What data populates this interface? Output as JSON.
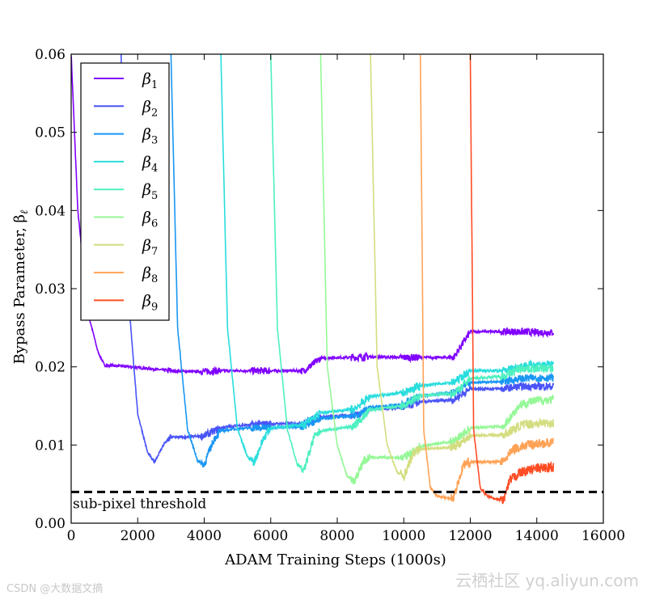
{
  "chart_data": {
    "type": "line",
    "title": "",
    "xlabel": "ADAM Training Steps (1000s)",
    "ylabel": "Bypass Parameter, β",
    "ylabel_sub": "ℓ",
    "xlim": [
      0,
      16000
    ],
    "ylim": [
      0,
      0.06
    ],
    "xticks": [
      "0",
      "2000",
      "4000",
      "6000",
      "8000",
      "10000",
      "12000",
      "14000",
      "16000"
    ],
    "xtick_values": [
      0,
      2000,
      4000,
      6000,
      8000,
      10000,
      12000,
      14000,
      16000
    ],
    "yticks": [
      "0.00",
      "0.01",
      "0.02",
      "0.03",
      "0.04",
      "0.05",
      "0.06"
    ],
    "ytick_values": [
      0,
      0.01,
      0.02,
      0.03,
      0.04,
      0.05,
      0.06
    ],
    "threshold": {
      "y": 0.004,
      "label": "sub-pixel threshold"
    },
    "legend": {
      "placement": "top-left"
    },
    "series": [
      {
        "name": "β",
        "sub": "1",
        "color": "#8000ff",
        "start": 0,
        "x": [
          0,
          200,
          500,
          800,
          1000,
          1500,
          2000,
          2500,
          3000,
          3500,
          4000,
          4500,
          5000,
          5500,
          6000,
          6500,
          7000,
          7500,
          8000,
          8500,
          9000,
          10000,
          10500,
          11000,
          11500,
          12000,
          12500,
          13000,
          13500,
          14000,
          14500
        ],
        "y": [
          0.06,
          0.04,
          0.027,
          0.022,
          0.0202,
          0.0201,
          0.0199,
          0.0197,
          0.0195,
          0.0194,
          0.0194,
          0.0195,
          0.0195,
          0.0195,
          0.0195,
          0.0195,
          0.0195,
          0.0211,
          0.0212,
          0.0212,
          0.0213,
          0.0212,
          0.0212,
          0.0212,
          0.0212,
          0.0245,
          0.0245,
          0.0245,
          0.0245,
          0.0244,
          0.0244
        ]
      },
      {
        "name": "β",
        "sub": "2",
        "color": "#4a54f7",
        "start": 1500,
        "x": [
          1500,
          1700,
          2000,
          2300,
          2500,
          2800,
          3000,
          3500,
          4000,
          4500,
          5000,
          6000,
          7000,
          7500,
          8500,
          9000,
          10000,
          10500,
          11500,
          12000,
          13000,
          13500,
          14000,
          14500
        ],
        "y": [
          0.06,
          0.03,
          0.014,
          0.009,
          0.0078,
          0.0102,
          0.011,
          0.011,
          0.0112,
          0.0122,
          0.0125,
          0.0127,
          0.0128,
          0.0136,
          0.0138,
          0.0146,
          0.0148,
          0.0155,
          0.0158,
          0.0172,
          0.0172,
          0.0175,
          0.0175,
          0.0175
        ]
      },
      {
        "name": "β",
        "sub": "3",
        "color": "#1996f3",
        "start": 3000,
        "x": [
          3000,
          3200,
          3500,
          3800,
          4000,
          4300,
          4500,
          5000,
          5500,
          6000,
          7000,
          7500,
          8500,
          9000,
          10000,
          10500,
          11500,
          12000,
          13000,
          13500,
          14000,
          14500
        ],
        "y": [
          0.06,
          0.025,
          0.012,
          0.008,
          0.0075,
          0.0108,
          0.0118,
          0.0121,
          0.0122,
          0.0122,
          0.0124,
          0.0134,
          0.0137,
          0.0148,
          0.0152,
          0.0163,
          0.0167,
          0.018,
          0.0181,
          0.0185,
          0.0186,
          0.0186
        ]
      },
      {
        "name": "β",
        "sub": "4",
        "color": "#2adddd",
        "start": 4500,
        "x": [
          4500,
          4700,
          5000,
          5300,
          5500,
          5800,
          6000,
          7000,
          7500,
          8500,
          9000,
          10000,
          10500,
          11500,
          12000,
          13000,
          13500,
          14000,
          14500
        ],
        "y": [
          0.06,
          0.025,
          0.012,
          0.0085,
          0.0078,
          0.011,
          0.0122,
          0.0126,
          0.0141,
          0.0146,
          0.0162,
          0.0167,
          0.0176,
          0.018,
          0.0195,
          0.0195,
          0.0201,
          0.0203,
          0.0203
        ]
      },
      {
        "name": "β",
        "sub": "5",
        "color": "#4ef0c0",
        "start": 6000,
        "x": [
          6000,
          6200,
          6500,
          6800,
          7000,
          7300,
          7500,
          8000,
          8500,
          9000,
          10000,
          10500,
          11500,
          12000,
          13000,
          13500,
          14000,
          14500
        ],
        "y": [
          0.06,
          0.025,
          0.012,
          0.0075,
          0.0068,
          0.011,
          0.0118,
          0.0121,
          0.0124,
          0.0145,
          0.015,
          0.0163,
          0.0166,
          0.0185,
          0.0188,
          0.0198,
          0.0198,
          0.0198
        ]
      },
      {
        "name": "β",
        "sub": "6",
        "color": "#94f896",
        "start": 7500,
        "x": [
          7500,
          7700,
          8000,
          8300,
          8500,
          8800,
          9000,
          10000,
          10500,
          11000,
          11500,
          12000,
          13000,
          13500,
          14000,
          14500
        ],
        "y": [
          0.06,
          0.02,
          0.01,
          0.006,
          0.0053,
          0.008,
          0.0084,
          0.0084,
          0.0098,
          0.0102,
          0.0104,
          0.0122,
          0.0124,
          0.0152,
          0.0157,
          0.0158
        ]
      },
      {
        "name": "β",
        "sub": "7",
        "color": "#d4dd80",
        "start": 9000,
        "x": [
          9000,
          9200,
          9500,
          9800,
          10000,
          10300,
          10500,
          11500,
          12000,
          13000,
          13500,
          14000,
          14500
        ],
        "y": [
          0.06,
          0.02,
          0.01,
          0.0065,
          0.006,
          0.009,
          0.0095,
          0.0097,
          0.0112,
          0.0113,
          0.0125,
          0.0128,
          0.0128
        ]
      },
      {
        "name": "β",
        "sub": "8",
        "color": "#ffa256",
        "start": 10500,
        "x": [
          10500,
          10600,
          10800,
          11000,
          11300,
          11500,
          11800,
          12000,
          13000,
          13300,
          13800,
          14500
        ],
        "y": [
          0.06,
          0.012,
          0.0045,
          0.0035,
          0.0032,
          0.0033,
          0.0075,
          0.0078,
          0.0079,
          0.0095,
          0.0101,
          0.0103
        ]
      },
      {
        "name": "β",
        "sub": "9",
        "color": "#ff4d25",
        "start": 12000,
        "x": [
          12000,
          12100,
          12300,
          12500,
          12800,
          13000,
          13200,
          13500,
          14000,
          14500
        ],
        "y": [
          0.06,
          0.012,
          0.0045,
          0.0035,
          0.003,
          0.003,
          0.0055,
          0.0065,
          0.007,
          0.0072
        ]
      }
    ]
  },
  "watermarks": {
    "left": "CSDN @大数据文摘",
    "right": "云栖社区 yq.aliyun.com"
  }
}
